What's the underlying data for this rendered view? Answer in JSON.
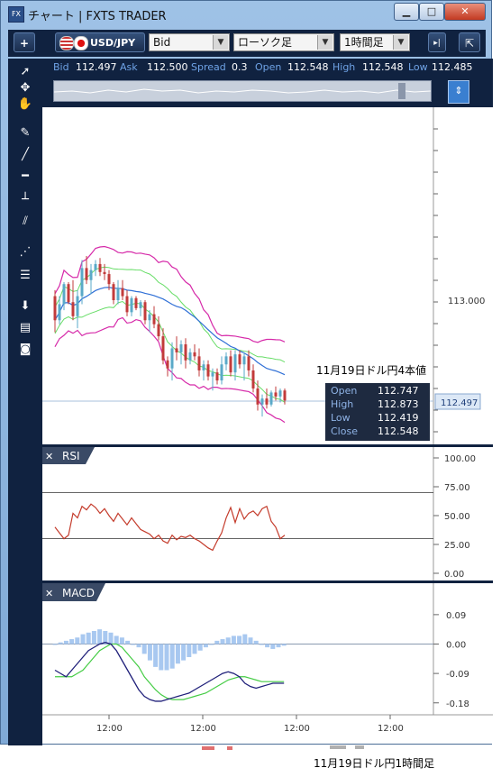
{
  "window": {
    "title": "チャート | FXTS TRADER",
    "app_icon": "FX",
    "minimize": "▁",
    "maximize": "□",
    "close": "✕"
  },
  "toolbar": {
    "add_label": "+",
    "symbol": "USD/JPY",
    "price_type": "Bid",
    "chart_type": "ローソク足",
    "timeframe": "1時間足",
    "scroll_icon": "▸|",
    "detach_icon": "⇱"
  },
  "quote": {
    "bid_label": "Bid",
    "bid": "112.497",
    "ask_label": "Ask",
    "ask": "112.500",
    "spread_label": "Spread",
    "spread": "0.3",
    "open_label": "Open",
    "open": "112.548",
    "high_label": "High",
    "high": "112.548",
    "low_label": "Low",
    "low": "112.485"
  },
  "tools": [
    "cursor-arrow",
    "crosshair",
    "hand",
    "pencil",
    "trend-line",
    "horizontal-line",
    "vertical-line",
    "parallel-channel",
    "fibonacci-fan",
    "fibonacci-retracement",
    "down-arrow",
    "list",
    "camera"
  ],
  "annotation": {
    "text": "11月19日ドル円4本値"
  },
  "ohlc_box": {
    "open_label": "Open",
    "open": "112.747",
    "high_label": "High",
    "high": "112.873",
    "low_label": "Low",
    "low": "112.419",
    "close_label": "Close",
    "close": "112.548"
  },
  "price_axis": {
    "level_label": "113.000",
    "current_price": "112.497",
    "current_price_value": 112.497
  },
  "rsi_panel": {
    "title": "RSI",
    "close_icon": "✕",
    "ticks": [
      "100.00",
      "75.00",
      "50.00",
      "25.00",
      "0.00"
    ]
  },
  "macd_panel": {
    "title": "MACD",
    "close_icon": "✕",
    "ticks": [
      "0.09",
      "0.00",
      "-0.09",
      "-0.18"
    ]
  },
  "time_axis": {
    "labels": [
      "12:00",
      "12:00",
      "12:00",
      "12:00"
    ]
  },
  "caption": "11月19日ドル円1時間足",
  "colors": {
    "bull": "#5aa9c8",
    "bear": "#c23b3b",
    "upper_band": "#d62aa9",
    "mid_band": "#66dd66",
    "ma": "#2f6fd6",
    "rsi": "#c43b2b",
    "macd": "#20207a",
    "signal": "#44cc44",
    "hist": "#a8c8f0"
  },
  "chart_data": {
    "type": "candlestick",
    "price_range": [
      112.35,
      113.45
    ],
    "candles": [
      [
        113.02,
        113.05,
        112.84,
        112.9
      ],
      [
        112.9,
        113.02,
        112.88,
        112.98
      ],
      [
        112.98,
        113.09,
        112.95,
        113.08
      ],
      [
        113.08,
        113.09,
        112.98,
        112.99
      ],
      [
        112.99,
        113.1,
        112.9,
        112.92
      ],
      [
        112.92,
        113.05,
        112.86,
        113.02
      ],
      [
        113.02,
        113.2,
        112.98,
        113.16
      ],
      [
        113.16,
        113.22,
        113.08,
        113.1
      ],
      [
        113.1,
        113.18,
        113.03,
        113.15
      ],
      [
        113.15,
        113.2,
        113.12,
        113.18
      ],
      [
        113.18,
        113.21,
        113.12,
        113.14
      ],
      [
        113.14,
        113.18,
        113.1,
        113.13
      ],
      [
        113.13,
        113.15,
        113.05,
        113.08
      ],
      [
        113.08,
        113.09,
        112.98,
        113.0
      ],
      [
        113.0,
        113.1,
        112.98,
        113.06
      ],
      [
        113.06,
        113.1,
        113.0,
        113.02
      ],
      [
        113.02,
        113.05,
        112.92,
        112.94
      ],
      [
        112.94,
        113.02,
        112.92,
        113.01
      ],
      [
        113.01,
        113.02,
        112.95,
        112.96
      ],
      [
        112.96,
        113.0,
        112.92,
        112.99
      ],
      [
        112.99,
        113.0,
        112.88,
        112.9
      ],
      [
        112.9,
        112.95,
        112.84,
        112.93
      ],
      [
        112.93,
        112.97,
        112.86,
        112.88
      ],
      [
        112.88,
        112.92,
        112.8,
        112.82
      ],
      [
        112.82,
        112.86,
        112.68,
        112.7
      ],
      [
        112.7,
        112.72,
        112.62,
        112.66
      ],
      [
        112.66,
        112.79,
        112.6,
        112.76
      ],
      [
        112.76,
        112.82,
        112.7,
        112.74
      ],
      [
        112.74,
        112.8,
        112.68,
        112.78
      ],
      [
        112.78,
        112.81,
        112.66,
        112.7
      ],
      [
        112.7,
        112.76,
        112.68,
        112.74
      ],
      [
        112.74,
        112.78,
        112.7,
        112.72
      ],
      [
        112.72,
        112.76,
        112.62,
        112.65
      ],
      [
        112.65,
        112.7,
        112.6,
        112.68
      ],
      [
        112.68,
        112.7,
        112.6,
        112.62
      ],
      [
        112.62,
        112.66,
        112.55,
        112.64
      ],
      [
        112.64,
        112.66,
        112.58,
        112.6
      ],
      [
        112.6,
        112.72,
        112.58,
        112.68
      ],
      [
        112.68,
        112.74,
        112.65,
        112.72
      ],
      [
        112.72,
        112.75,
        112.62,
        112.64
      ],
      [
        112.64,
        112.75,
        112.6,
        112.73
      ],
      [
        112.73,
        112.75,
        112.66,
        112.68
      ],
      [
        112.68,
        112.74,
        112.6,
        112.72
      ],
      [
        112.72,
        112.75,
        112.62,
        112.65
      ],
      [
        112.65,
        112.68,
        112.54,
        112.56
      ],
      [
        112.56,
        112.6,
        112.45,
        112.48
      ],
      [
        112.48,
        112.53,
        112.42,
        112.51
      ],
      [
        112.51,
        112.56,
        112.46,
        112.48
      ],
      [
        112.48,
        112.55,
        112.47,
        112.54
      ],
      [
        112.54,
        112.57,
        112.5,
        112.52
      ],
      [
        112.52,
        112.56,
        112.49,
        112.55
      ],
      [
        112.55,
        112.56,
        112.48,
        112.5
      ]
    ],
    "rsi": {
      "range": [
        0,
        100
      ],
      "levels": [
        70,
        30
      ],
      "values": [
        40,
        35,
        30,
        33,
        52,
        48,
        58,
        55,
        60,
        57,
        52,
        56,
        50,
        45,
        52,
        47,
        42,
        48,
        43,
        38,
        36,
        34,
        30,
        33,
        28,
        26,
        33,
        29,
        32,
        31,
        33,
        30,
        28,
        25,
        22,
        20,
        28,
        35,
        48,
        57,
        44,
        56,
        47,
        52,
        54,
        50,
        56,
        58,
        45,
        40,
        30,
        33
      ]
    },
    "macd": {
      "range": [
        -0.2,
        0.12
      ],
      "hist": [
        0.0,
        0.005,
        0.01,
        0.015,
        0.02,
        0.03,
        0.035,
        0.04,
        0.045,
        0.04,
        0.035,
        0.025,
        0.02,
        0.01,
        0.0,
        -0.01,
        -0.03,
        -0.05,
        -0.07,
        -0.08,
        -0.08,
        -0.075,
        -0.06,
        -0.05,
        -0.04,
        -0.03,
        -0.02,
        -0.01,
        0.0,
        0.01,
        0.015,
        0.02,
        0.025,
        0.025,
        0.03,
        0.02,
        0.01,
        0.0,
        -0.01,
        -0.015,
        -0.01,
        -0.005
      ],
      "macd": [
        -0.08,
        -0.09,
        -0.1,
        -0.08,
        -0.06,
        -0.04,
        -0.02,
        -0.01,
        0.0,
        0.005,
        0.0,
        -0.02,
        -0.05,
        -0.08,
        -0.11,
        -0.14,
        -0.16,
        -0.17,
        -0.175,
        -0.175,
        -0.17,
        -0.165,
        -0.16,
        -0.155,
        -0.15,
        -0.14,
        -0.13,
        -0.12,
        -0.11,
        -0.1,
        -0.09,
        -0.085,
        -0.09,
        -0.1,
        -0.12,
        -0.13,
        -0.135,
        -0.13,
        -0.125,
        -0.12,
        -0.12,
        -0.12
      ],
      "signal": [
        -0.1,
        -0.1,
        -0.1,
        -0.1,
        -0.09,
        -0.08,
        -0.06,
        -0.04,
        -0.02,
        -0.01,
        0.0,
        0.0,
        -0.01,
        -0.03,
        -0.05,
        -0.07,
        -0.1,
        -0.12,
        -0.14,
        -0.155,
        -0.165,
        -0.17,
        -0.17,
        -0.17,
        -0.165,
        -0.16,
        -0.155,
        -0.15,
        -0.14,
        -0.13,
        -0.12,
        -0.11,
        -0.105,
        -0.1,
        -0.1,
        -0.105,
        -0.11,
        -0.115,
        -0.115,
        -0.115,
        -0.115,
        -0.115
      ]
    }
  }
}
